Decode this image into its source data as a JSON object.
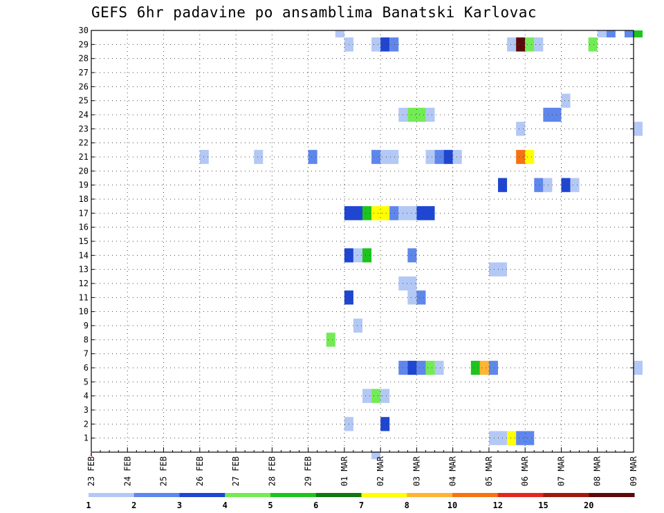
{
  "chart_data": {
    "type": "heatmap",
    "title": "GEFS 6hr padavine po ansamblima Banatski Karlovac",
    "xlabel": "",
    "ylabel": "",
    "x_tick_labels": [
      "23 FEB",
      "24 FEB",
      "25 FEB",
      "26 FEB",
      "27 FEB",
      "28 FEB",
      "29 FEB",
      "01 MAR",
      "02 MAR",
      "03 MAR",
      "04 MAR",
      "05 MAR",
      "06 MAR",
      "07 MAR",
      "08 MAR",
      "09 MAR"
    ],
    "y_tick_labels": [
      "1",
      "2",
      "3",
      "4",
      "5",
      "6",
      "7",
      "8",
      "9",
      "10",
      "11",
      "12",
      "13",
      "14",
      "15",
      "16",
      "17",
      "18",
      "19",
      "20",
      "21",
      "22",
      "23",
      "24",
      "25",
      "26",
      "27",
      "28",
      "29",
      "30"
    ],
    "grid": true,
    "colorbar": {
      "position": "bottom",
      "tick_labels": [
        "1",
        "2",
        "3",
        "4",
        "5",
        "6",
        "7",
        "8",
        "10",
        "12",
        "15",
        "20"
      ],
      "colors": [
        "#b4c8f5",
        "#5f87eb",
        "#1e46d2",
        "#73eb55",
        "#1ec31e",
        "#0f780f",
        "#ffff00",
        "#ffb432",
        "#f57314",
        "#e1281e",
        "#a0190f",
        "#5a0a0a"
      ]
    },
    "time_step_hours": 6,
    "cells": [
      {
        "start": "2024-02-29 18:00",
        "end": "2024-03-01 00:00",
        "member": 30,
        "color": "#b4c8f5"
      },
      {
        "start": "2024-03-08 00:00",
        "end": "2024-03-08 06:00",
        "member": 30,
        "color": "#b4c8f5"
      },
      {
        "start": "2024-03-08 06:00",
        "end": "2024-03-08 12:00",
        "member": 30,
        "color": "#5f87eb"
      },
      {
        "start": "2024-03-08 18:00",
        "end": "2024-03-09 00:00",
        "member": 30,
        "color": "#5f87eb"
      },
      {
        "start": "2024-03-09 00:00",
        "end": "2024-03-09 06:00",
        "member": 30,
        "color": "#1ec31e"
      },
      {
        "start": "2024-03-01 00:00",
        "end": "2024-03-01 06:00",
        "member": 29,
        "color": "#b4c8f5"
      },
      {
        "start": "2024-03-01 18:00",
        "end": "2024-03-02 00:00",
        "member": 29,
        "color": "#b4c8f5"
      },
      {
        "start": "2024-03-02 00:00",
        "end": "2024-03-02 06:00",
        "member": 29,
        "color": "#1e46d2"
      },
      {
        "start": "2024-03-02 06:00",
        "end": "2024-03-02 12:00",
        "member": 29,
        "color": "#5f87eb"
      },
      {
        "start": "2024-03-05 12:00",
        "end": "2024-03-05 18:00",
        "member": 29,
        "color": "#b4c8f5"
      },
      {
        "start": "2024-03-05 18:00",
        "end": "2024-03-06 00:00",
        "member": 29,
        "color": "#5a0a0a"
      },
      {
        "start": "2024-03-06 00:00",
        "end": "2024-03-06 06:00",
        "member": 29,
        "color": "#73eb55"
      },
      {
        "start": "2024-03-06 06:00",
        "end": "2024-03-06 12:00",
        "member": 29,
        "color": "#b4c8f5"
      },
      {
        "start": "2024-03-07 18:00",
        "end": "2024-03-08 00:00",
        "member": 29,
        "color": "#73eb55"
      },
      {
        "start": "2024-03-07 00:00",
        "end": "2024-03-07 06:00",
        "member": 25,
        "color": "#b4c8f5"
      },
      {
        "start": "2024-03-02 12:00",
        "end": "2024-03-02 18:00",
        "member": 24,
        "color": "#b4c8f5"
      },
      {
        "start": "2024-03-02 18:00",
        "end": "2024-03-03 06:00",
        "member": 24,
        "color": "#73eb55"
      },
      {
        "start": "2024-03-03 06:00",
        "end": "2024-03-03 12:00",
        "member": 24,
        "color": "#b4c8f5"
      },
      {
        "start": "2024-03-06 12:00",
        "end": "2024-03-07 00:00",
        "member": 24,
        "color": "#5f87eb"
      },
      {
        "start": "2024-03-05 18:00",
        "end": "2024-03-06 00:00",
        "member": 23,
        "color": "#b4c8f5"
      },
      {
        "start": "2024-03-09 00:00",
        "end": "2024-03-09 06:00",
        "member": 23,
        "color": "#b4c8f5"
      },
      {
        "start": "2024-02-26 00:00",
        "end": "2024-02-26 06:00",
        "member": 21,
        "color": "#b4c8f5"
      },
      {
        "start": "2024-02-27 12:00",
        "end": "2024-02-27 18:00",
        "member": 21,
        "color": "#b4c8f5"
      },
      {
        "start": "2024-02-29 00:00",
        "end": "2024-02-29 06:00",
        "member": 21,
        "color": "#5f87eb"
      },
      {
        "start": "2024-03-01 18:00",
        "end": "2024-03-02 00:00",
        "member": 21,
        "color": "#5f87eb"
      },
      {
        "start": "2024-03-02 00:00",
        "end": "2024-03-02 12:00",
        "member": 21,
        "color": "#b4c8f5"
      },
      {
        "start": "2024-03-03 06:00",
        "end": "2024-03-03 12:00",
        "member": 21,
        "color": "#b4c8f5"
      },
      {
        "start": "2024-03-03 12:00",
        "end": "2024-03-03 18:00",
        "member": 21,
        "color": "#5f87eb"
      },
      {
        "start": "2024-03-03 18:00",
        "end": "2024-03-04 00:00",
        "member": 21,
        "color": "#1e46d2"
      },
      {
        "start": "2024-03-04 00:00",
        "end": "2024-03-04 06:00",
        "member": 21,
        "color": "#b4c8f5"
      },
      {
        "start": "2024-03-05 18:00",
        "end": "2024-03-06 00:00",
        "member": 21,
        "color": "#f57314"
      },
      {
        "start": "2024-03-06 00:00",
        "end": "2024-03-06 06:00",
        "member": 21,
        "color": "#ffff00"
      },
      {
        "start": "2024-03-05 06:00",
        "end": "2024-03-05 12:00",
        "member": 19,
        "color": "#1e46d2"
      },
      {
        "start": "2024-03-06 06:00",
        "end": "2024-03-06 12:00",
        "member": 19,
        "color": "#5f87eb"
      },
      {
        "start": "2024-03-06 12:00",
        "end": "2024-03-06 18:00",
        "member": 19,
        "color": "#b4c8f5"
      },
      {
        "start": "2024-03-07 00:00",
        "end": "2024-03-07 06:00",
        "member": 19,
        "color": "#1e46d2"
      },
      {
        "start": "2024-03-07 06:00",
        "end": "2024-03-07 12:00",
        "member": 19,
        "color": "#b4c8f5"
      },
      {
        "start": "2024-03-01 00:00",
        "end": "2024-03-01 12:00",
        "member": 17,
        "color": "#1e46d2"
      },
      {
        "start": "2024-03-01 12:00",
        "end": "2024-03-01 18:00",
        "member": 17,
        "color": "#1ec31e"
      },
      {
        "start": "2024-03-01 18:00",
        "end": "2024-03-02 06:00",
        "member": 17,
        "color": "#ffff00"
      },
      {
        "start": "2024-03-02 06:00",
        "end": "2024-03-02 12:00",
        "member": 17,
        "color": "#5f87eb"
      },
      {
        "start": "2024-03-02 12:00",
        "end": "2024-03-03 00:00",
        "member": 17,
        "color": "#b4c8f5"
      },
      {
        "start": "2024-03-03 00:00",
        "end": "2024-03-03 12:00",
        "member": 17,
        "color": "#1e46d2"
      },
      {
        "start": "2024-03-01 00:00",
        "end": "2024-03-01 06:00",
        "member": 14,
        "color": "#1e46d2"
      },
      {
        "start": "2024-03-01 06:00",
        "end": "2024-03-01 12:00",
        "member": 14,
        "color": "#b4c8f5"
      },
      {
        "start": "2024-03-01 12:00",
        "end": "2024-03-01 18:00",
        "member": 14,
        "color": "#1ec31e"
      },
      {
        "start": "2024-03-02 18:00",
        "end": "2024-03-03 00:00",
        "member": 14,
        "color": "#5f87eb"
      },
      {
        "start": "2024-03-05 00:00",
        "end": "2024-03-05 12:00",
        "member": 13,
        "color": "#b4c8f5"
      },
      {
        "start": "2024-03-02 12:00",
        "end": "2024-03-03 00:00",
        "member": 12,
        "color": "#b4c8f5"
      },
      {
        "start": "2024-03-01 00:00",
        "end": "2024-03-01 06:00",
        "member": 11,
        "color": "#1e46d2"
      },
      {
        "start": "2024-03-02 18:00",
        "end": "2024-03-03 00:00",
        "member": 11,
        "color": "#b4c8f5"
      },
      {
        "start": "2024-03-03 00:00",
        "end": "2024-03-03 06:00",
        "member": 11,
        "color": "#5f87eb"
      },
      {
        "start": "2024-03-01 06:00",
        "end": "2024-03-01 12:00",
        "member": 9,
        "color": "#b4c8f5"
      },
      {
        "start": "2024-02-29 12:00",
        "end": "2024-02-29 18:00",
        "member": 8,
        "color": "#73eb55"
      },
      {
        "start": "2024-03-02 12:00",
        "end": "2024-03-02 18:00",
        "member": 6,
        "color": "#5f87eb"
      },
      {
        "start": "2024-03-02 18:00",
        "end": "2024-03-03 00:00",
        "member": 6,
        "color": "#1e46d2"
      },
      {
        "start": "2024-03-03 00:00",
        "end": "2024-03-03 06:00",
        "member": 6,
        "color": "#5f87eb"
      },
      {
        "start": "2024-03-03 06:00",
        "end": "2024-03-03 12:00",
        "member": 6,
        "color": "#73eb55"
      },
      {
        "start": "2024-03-03 12:00",
        "end": "2024-03-03 18:00",
        "member": 6,
        "color": "#b4c8f5"
      },
      {
        "start": "2024-03-04 12:00",
        "end": "2024-03-04 18:00",
        "member": 6,
        "color": "#1ec31e"
      },
      {
        "start": "2024-03-04 18:00",
        "end": "2024-03-05 00:00",
        "member": 6,
        "color": "#ffb432"
      },
      {
        "start": "2024-03-05 00:00",
        "end": "2024-03-05 06:00",
        "member": 6,
        "color": "#5f87eb"
      },
      {
        "start": "2024-03-09 00:00",
        "end": "2024-03-09 06:00",
        "member": 6,
        "color": "#b4c8f5"
      },
      {
        "start": "2024-03-01 12:00",
        "end": "2024-03-01 18:00",
        "member": 4,
        "color": "#b4c8f5"
      },
      {
        "start": "2024-03-01 18:00",
        "end": "2024-03-02 00:00",
        "member": 4,
        "color": "#73eb55"
      },
      {
        "start": "2024-03-02 00:00",
        "end": "2024-03-02 06:00",
        "member": 4,
        "color": "#b4c8f5"
      },
      {
        "start": "2024-03-01 00:00",
        "end": "2024-03-01 06:00",
        "member": 2,
        "color": "#b4c8f5"
      },
      {
        "start": "2024-03-02 00:00",
        "end": "2024-03-02 06:00",
        "member": 2,
        "color": "#1e46d2"
      },
      {
        "start": "2024-03-05 00:00",
        "end": "2024-03-05 12:00",
        "member": 1,
        "color": "#b4c8f5"
      },
      {
        "start": "2024-03-05 12:00",
        "end": "2024-03-05 18:00",
        "member": 1,
        "color": "#ffff00"
      },
      {
        "start": "2024-03-05 18:00",
        "end": "2024-03-06 06:00",
        "member": 1,
        "color": "#5f87eb"
      },
      {
        "start": "2024-03-01 18:00",
        "end": "2024-03-02 00:00",
        "member": 0,
        "color": "#b4c8f5"
      }
    ]
  }
}
